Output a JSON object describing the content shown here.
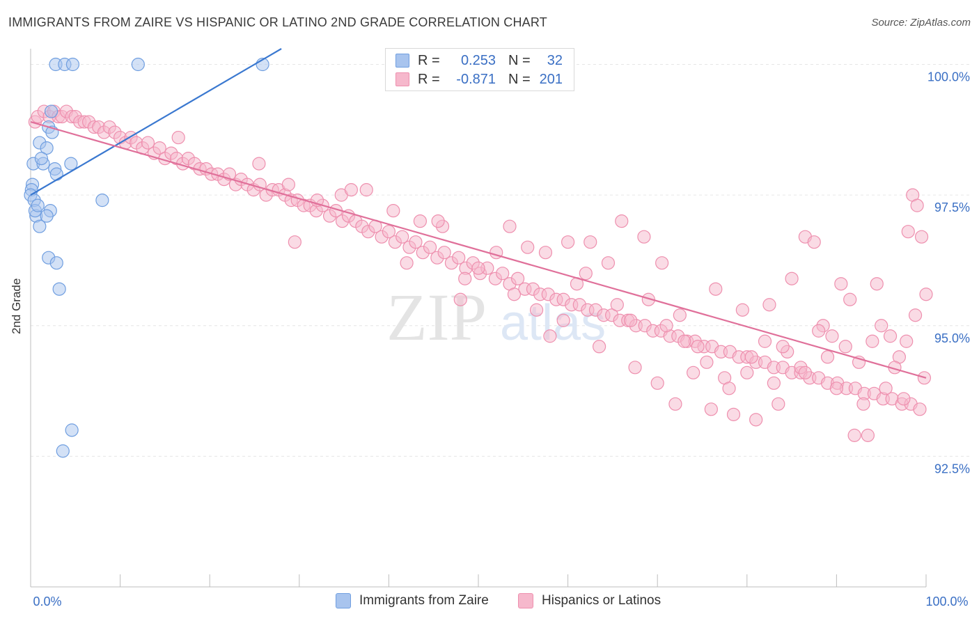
{
  "title": "IMMIGRANTS FROM ZAIRE VS HISPANIC OR LATINO 2ND GRADE CORRELATION CHART",
  "source": "Source: ZipAtlas.com",
  "watermark": {
    "zip": "ZIP",
    "atlas": "atlas"
  },
  "legend_top": [
    {
      "r_label": "R =",
      "r_value": "0.253",
      "n_label": "N =",
      "n_value": "32"
    },
    {
      "r_label": "R =",
      "r_value": "-0.871",
      "n_label": "N =",
      "n_value": "201"
    }
  ],
  "colors": {
    "blue_fill": "#a8c4ee",
    "blue_stroke": "#6f9ee0",
    "blue_line": "#3a78d0",
    "pink_fill": "#f6b8cc",
    "pink_stroke": "#ee8fae",
    "pink_line": "#e0709a",
    "tick_text": "#3a6fc4",
    "grid": "#e6e6e6"
  },
  "chart_data": {
    "type": "scatter",
    "title": "IMMIGRANTS FROM ZAIRE VS HISPANIC OR LATINO 2ND GRADE CORRELATION CHART",
    "xlabel": "",
    "ylabel": "2nd Grade",
    "xlim": [
      0,
      100
    ],
    "ylim": [
      90.0,
      100.3
    ],
    "x_tick_labels": [
      "0.0%",
      "100.0%"
    ],
    "y_ticks": [
      {
        "value": 100.0,
        "label": "100.0%"
      },
      {
        "value": 97.5,
        "label": "97.5%"
      },
      {
        "value": 95.0,
        "label": "95.0%"
      },
      {
        "value": 92.5,
        "label": "92.5%"
      }
    ],
    "grid": true,
    "legend_position": "bottom",
    "series": [
      {
        "name": "Immigrants from Zaire",
        "color": "blue",
        "trend": {
          "x0": 0,
          "y0": 97.5,
          "x1": 28,
          "y1": 100.3
        },
        "points": [
          [
            2.8,
            100.0
          ],
          [
            3.8,
            100.0
          ],
          [
            4.7,
            100.0
          ],
          [
            12.0,
            100.0
          ],
          [
            25.9,
            100.0
          ],
          [
            2.3,
            99.1
          ],
          [
            2.0,
            98.8
          ],
          [
            2.4,
            98.7
          ],
          [
            1.0,
            98.5
          ],
          [
            1.8,
            98.4
          ],
          [
            0.3,
            98.1
          ],
          [
            1.4,
            98.1
          ],
          [
            4.5,
            98.1
          ],
          [
            2.7,
            98.0
          ],
          [
            2.9,
            97.9
          ],
          [
            0.2,
            97.7
          ],
          [
            0.1,
            97.6
          ],
          [
            0.0,
            97.5
          ],
          [
            0.4,
            97.4
          ],
          [
            8.0,
            97.4
          ],
          [
            2.2,
            97.2
          ],
          [
            0.6,
            97.1
          ],
          [
            1.8,
            97.1
          ],
          [
            1.0,
            96.9
          ],
          [
            2.0,
            96.3
          ],
          [
            2.9,
            96.2
          ],
          [
            3.2,
            95.7
          ],
          [
            4.6,
            93.0
          ],
          [
            3.6,
            92.6
          ],
          [
            0.5,
            97.2
          ],
          [
            1.2,
            98.2
          ],
          [
            0.8,
            97.3
          ]
        ]
      },
      {
        "name": "Hispanics or Latinos",
        "color": "pink",
        "trend": {
          "x0": 0,
          "y0": 98.9,
          "x1": 100,
          "y1": 94.0
        },
        "points": [
          [
            0.5,
            98.9
          ],
          [
            0.8,
            99.0
          ],
          [
            1.5,
            99.1
          ],
          [
            2.1,
            99.0
          ],
          [
            2.6,
            99.1
          ],
          [
            3.1,
            99.0
          ],
          [
            3.5,
            99.0
          ],
          [
            4.0,
            99.1
          ],
          [
            4.6,
            99.0
          ],
          [
            5.0,
            99.0
          ],
          [
            5.5,
            98.9
          ],
          [
            6.0,
            98.9
          ],
          [
            6.5,
            98.9
          ],
          [
            7.1,
            98.8
          ],
          [
            7.6,
            98.8
          ],
          [
            8.2,
            98.7
          ],
          [
            8.8,
            98.8
          ],
          [
            9.4,
            98.7
          ],
          [
            10.0,
            98.6
          ],
          [
            10.6,
            98.5
          ],
          [
            11.2,
            98.6
          ],
          [
            11.8,
            98.5
          ],
          [
            12.5,
            98.4
          ],
          [
            13.1,
            98.5
          ],
          [
            13.8,
            98.3
          ],
          [
            14.4,
            98.4
          ],
          [
            15.0,
            98.2
          ],
          [
            15.7,
            98.3
          ],
          [
            16.3,
            98.2
          ],
          [
            17.0,
            98.1
          ],
          [
            17.6,
            98.2
          ],
          [
            18.3,
            98.1
          ],
          [
            18.9,
            98.0
          ],
          [
            19.6,
            98.0
          ],
          [
            20.2,
            97.9
          ],
          [
            20.9,
            97.9
          ],
          [
            21.6,
            97.8
          ],
          [
            22.2,
            97.9
          ],
          [
            22.9,
            97.7
          ],
          [
            23.5,
            97.8
          ],
          [
            24.2,
            97.7
          ],
          [
            24.9,
            97.6
          ],
          [
            25.6,
            97.7
          ],
          [
            26.3,
            97.5
          ],
          [
            27.0,
            97.6
          ],
          [
            27.7,
            97.6
          ],
          [
            28.4,
            97.5
          ],
          [
            29.1,
            97.4
          ],
          [
            29.8,
            97.4
          ],
          [
            30.5,
            97.3
          ],
          [
            31.2,
            97.3
          ],
          [
            31.9,
            97.2
          ],
          [
            32.6,
            97.3
          ],
          [
            33.4,
            97.1
          ],
          [
            34.1,
            97.2
          ],
          [
            34.8,
            97.0
          ],
          [
            35.5,
            97.1
          ],
          [
            36.3,
            97.0
          ],
          [
            37.0,
            96.9
          ],
          [
            37.7,
            96.8
          ],
          [
            38.5,
            96.9
          ],
          [
            39.2,
            96.7
          ],
          [
            40.0,
            96.8
          ],
          [
            40.7,
            96.6
          ],
          [
            41.5,
            96.7
          ],
          [
            42.3,
            96.5
          ],
          [
            43.0,
            96.6
          ],
          [
            43.8,
            96.4
          ],
          [
            44.6,
            96.5
          ],
          [
            45.4,
            96.3
          ],
          [
            46.2,
            96.4
          ],
          [
            47.0,
            96.2
          ],
          [
            47.8,
            96.3
          ],
          [
            48.6,
            96.1
          ],
          [
            49.4,
            96.2
          ],
          [
            50.2,
            96.0
          ],
          [
            51.0,
            96.1
          ],
          [
            51.9,
            95.9
          ],
          [
            52.7,
            96.0
          ],
          [
            53.5,
            95.8
          ],
          [
            54.4,
            95.9
          ],
          [
            55.2,
            95.7
          ],
          [
            56.1,
            95.7
          ],
          [
            56.9,
            95.6
          ],
          [
            57.8,
            95.6
          ],
          [
            58.7,
            95.5
          ],
          [
            59.5,
            95.5
          ],
          [
            60.4,
            95.4
          ],
          [
            61.3,
            95.4
          ],
          [
            62.2,
            95.3
          ],
          [
            63.1,
            95.3
          ],
          [
            64.0,
            95.2
          ],
          [
            64.9,
            95.2
          ],
          [
            65.8,
            95.1
          ],
          [
            66.7,
            95.1
          ],
          [
            67.6,
            95.0
          ],
          [
            68.6,
            95.0
          ],
          [
            69.5,
            94.9
          ],
          [
            70.4,
            94.9
          ],
          [
            71.4,
            94.8
          ],
          [
            72.3,
            94.8
          ],
          [
            73.3,
            94.7
          ],
          [
            74.2,
            94.7
          ],
          [
            75.2,
            94.6
          ],
          [
            76.1,
            94.6
          ],
          [
            77.1,
            94.5
          ],
          [
            78.1,
            94.5
          ],
          [
            79.1,
            94.4
          ],
          [
            80.0,
            94.4
          ],
          [
            81.0,
            94.3
          ],
          [
            82.0,
            94.3
          ],
          [
            83.0,
            94.2
          ],
          [
            84.0,
            94.2
          ],
          [
            85.0,
            94.1
          ],
          [
            86.0,
            94.1
          ],
          [
            87.0,
            94.0
          ],
          [
            88.0,
            94.0
          ],
          [
            89.0,
            93.9
          ],
          [
            90.1,
            93.9
          ],
          [
            91.1,
            93.8
          ],
          [
            92.1,
            93.8
          ],
          [
            93.1,
            93.7
          ],
          [
            94.2,
            93.7
          ],
          [
            95.2,
            93.6
          ],
          [
            96.2,
            93.6
          ],
          [
            97.3,
            93.5
          ],
          [
            98.3,
            93.5
          ],
          [
            99.3,
            93.4
          ],
          [
            16.5,
            98.6
          ],
          [
            25.5,
            98.1
          ],
          [
            28.8,
            97.7
          ],
          [
            29.5,
            96.6
          ],
          [
            32.0,
            97.4
          ],
          [
            34.7,
            97.5
          ],
          [
            35.8,
            97.6
          ],
          [
            37.5,
            97.6
          ],
          [
            40.5,
            97.2
          ],
          [
            42.0,
            96.2
          ],
          [
            43.5,
            97.0
          ],
          [
            46.0,
            96.9
          ],
          [
            48.0,
            95.5
          ],
          [
            50.0,
            96.1
          ],
          [
            53.5,
            96.9
          ],
          [
            56.5,
            95.3
          ],
          [
            58.0,
            94.8
          ],
          [
            60.0,
            96.6
          ],
          [
            62.5,
            96.6
          ],
          [
            64.5,
            96.2
          ],
          [
            66.0,
            97.0
          ],
          [
            68.5,
            96.7
          ],
          [
            70.5,
            96.2
          ],
          [
            72.5,
            95.2
          ],
          [
            74.5,
            94.6
          ],
          [
            76.5,
            95.7
          ],
          [
            77.5,
            94.0
          ],
          [
            78.5,
            93.3
          ],
          [
            80.0,
            94.1
          ],
          [
            81.0,
            93.2
          ],
          [
            82.5,
            95.4
          ],
          [
            83.5,
            93.5
          ],
          [
            85.0,
            95.9
          ],
          [
            86.5,
            96.7
          ],
          [
            87.5,
            96.6
          ],
          [
            88.5,
            95.0
          ],
          [
            89.5,
            94.8
          ],
          [
            90.5,
            95.8
          ],
          [
            91.5,
            95.5
          ],
          [
            92.0,
            92.9
          ],
          [
            93.5,
            92.9
          ],
          [
            94.5,
            95.8
          ],
          [
            95.0,
            95.0
          ],
          [
            96.0,
            94.8
          ],
          [
            97.0,
            94.4
          ],
          [
            97.5,
            93.6
          ],
          [
            98.0,
            96.8
          ],
          [
            98.5,
            97.5
          ],
          [
            99.0,
            97.3
          ],
          [
            99.5,
            96.7
          ],
          [
            100.0,
            95.6
          ],
          [
            45.5,
            97.0
          ],
          [
            52.0,
            96.4
          ],
          [
            55.5,
            96.5
          ],
          [
            61.0,
            95.8
          ],
          [
            63.5,
            94.6
          ],
          [
            67.0,
            95.1
          ],
          [
            69.0,
            95.5
          ],
          [
            71.0,
            95.0
          ],
          [
            73.0,
            94.7
          ],
          [
            75.5,
            94.3
          ],
          [
            79.5,
            95.3
          ],
          [
            84.5,
            94.5
          ],
          [
            86.0,
            94.2
          ],
          [
            88.0,
            94.9
          ],
          [
            91.0,
            94.6
          ],
          [
            93.0,
            93.5
          ],
          [
            95.5,
            93.8
          ],
          [
            97.8,
            94.7
          ],
          [
            48.5,
            95.9
          ],
          [
            54.0,
            95.6
          ],
          [
            57.5,
            96.4
          ],
          [
            59.5,
            95.1
          ],
          [
            62.0,
            96.0
          ],
          [
            65.5,
            95.4
          ],
          [
            67.5,
            94.2
          ],
          [
            70.0,
            93.9
          ],
          [
            72.0,
            93.5
          ],
          [
            74.0,
            94.1
          ],
          [
            76.0,
            93.4
          ],
          [
            78.0,
            93.8
          ],
          [
            80.5,
            94.4
          ],
          [
            82.0,
            94.7
          ],
          [
            83.0,
            93.9
          ],
          [
            84.0,
            94.6
          ],
          [
            86.5,
            94.1
          ],
          [
            89.0,
            94.4
          ],
          [
            90.0,
            93.8
          ],
          [
            92.5,
            94.3
          ],
          [
            94.0,
            94.7
          ],
          [
            96.5,
            94.2
          ],
          [
            98.8,
            95.2
          ],
          [
            99.8,
            94.0
          ]
        ]
      }
    ]
  },
  "bottom_legend": [
    {
      "label": "Immigrants from Zaire"
    },
    {
      "label": "Hispanics or Latinos"
    }
  ]
}
